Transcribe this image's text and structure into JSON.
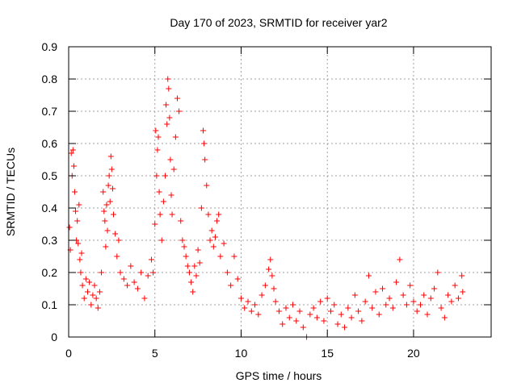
{
  "chart_data": {
    "type": "scatter",
    "title": "Day 170 of 2023, SRMTID for receiver yar2",
    "xlabel": "GPS time / hours",
    "ylabel": "SRMTID / TECUs",
    "xlim": [
      0,
      24.5
    ],
    "ylim": [
      0,
      0.9
    ],
    "xticks": [
      0,
      5,
      10,
      15,
      20
    ],
    "yticks": [
      0,
      0.1,
      0.2,
      0.3,
      0.4,
      0.5,
      0.6,
      0.7,
      0.8,
      0.9
    ],
    "xtick_labels": [
      "0",
      "5",
      "10",
      "15",
      "20"
    ],
    "ytick_labels": [
      "0",
      "0.1",
      "0.2",
      "0.3",
      "0.4",
      "0.5",
      "0.6",
      "0.7",
      "0.8",
      "0.9"
    ],
    "grid": true,
    "marker": "+",
    "series": [
      {
        "name": "yar2",
        "color": "#ff0000",
        "points": [
          [
            0.05,
            0.34
          ],
          [
            0.1,
            0.27
          ],
          [
            0.15,
            0.57
          ],
          [
            0.2,
            0.5
          ],
          [
            0.25,
            0.58
          ],
          [
            0.3,
            0.53
          ],
          [
            0.35,
            0.45
          ],
          [
            0.4,
            0.39
          ],
          [
            0.45,
            0.3
          ],
          [
            0.5,
            0.36
          ],
          [
            0.55,
            0.29
          ],
          [
            0.6,
            0.41
          ],
          [
            0.65,
            0.24
          ],
          [
            0.7,
            0.2
          ],
          [
            0.75,
            0.26
          ],
          [
            0.8,
            0.16
          ],
          [
            0.9,
            0.12
          ],
          [
            1.0,
            0.18
          ],
          [
            1.1,
            0.14
          ],
          [
            1.2,
            0.17
          ],
          [
            1.3,
            0.1
          ],
          [
            1.4,
            0.13
          ],
          [
            1.5,
            0.16
          ],
          [
            1.6,
            0.12
          ],
          [
            1.7,
            0.09
          ],
          [
            1.8,
            0.14
          ],
          [
            1.9,
            0.2
          ],
          [
            2.0,
            0.45
          ],
          [
            2.05,
            0.39
          ],
          [
            2.1,
            0.36
          ],
          [
            2.15,
            0.28
          ],
          [
            2.2,
            0.41
          ],
          [
            2.25,
            0.33
          ],
          [
            2.3,
            0.47
          ],
          [
            2.35,
            0.5
          ],
          [
            2.4,
            0.42
          ],
          [
            2.45,
            0.56
          ],
          [
            2.5,
            0.52
          ],
          [
            2.55,
            0.46
          ],
          [
            2.6,
            0.38
          ],
          [
            2.7,
            0.32
          ],
          [
            2.8,
            0.25
          ],
          [
            2.9,
            0.3
          ],
          [
            3.0,
            0.2
          ],
          [
            3.2,
            0.18
          ],
          [
            3.4,
            0.16
          ],
          [
            3.6,
            0.22
          ],
          [
            3.8,
            0.17
          ],
          [
            4.0,
            0.15
          ],
          [
            4.2,
            0.2
          ],
          [
            4.4,
            0.12
          ],
          [
            4.6,
            0.19
          ],
          [
            4.8,
            0.24
          ],
          [
            4.9,
            0.2
          ],
          [
            5.0,
            0.35
          ],
          [
            5.05,
            0.64
          ],
          [
            5.1,
            0.5
          ],
          [
            5.15,
            0.58
          ],
          [
            5.2,
            0.62
          ],
          [
            5.25,
            0.45
          ],
          [
            5.3,
            0.38
          ],
          [
            5.4,
            0.3
          ],
          [
            5.5,
            0.42
          ],
          [
            5.6,
            0.5
          ],
          [
            5.65,
            0.72
          ],
          [
            5.7,
            0.66
          ],
          [
            5.75,
            0.8
          ],
          [
            5.8,
            0.77
          ],
          [
            5.85,
            0.68
          ],
          [
            5.9,
            0.55
          ],
          [
            5.95,
            0.44
          ],
          [
            6.0,
            0.38
          ],
          [
            6.1,
            0.52
          ],
          [
            6.2,
            0.62
          ],
          [
            6.3,
            0.74
          ],
          [
            6.4,
            0.7
          ],
          [
            6.5,
            0.36
          ],
          [
            6.6,
            0.3
          ],
          [
            6.7,
            0.28
          ],
          [
            6.8,
            0.25
          ],
          [
            6.9,
            0.22
          ],
          [
            7.0,
            0.2
          ],
          [
            7.1,
            0.17
          ],
          [
            7.2,
            0.14
          ],
          [
            7.3,
            0.22
          ],
          [
            7.4,
            0.19
          ],
          [
            7.5,
            0.27
          ],
          [
            7.6,
            0.23
          ],
          [
            7.7,
            0.4
          ],
          [
            7.8,
            0.64
          ],
          [
            7.85,
            0.6
          ],
          [
            7.9,
            0.55
          ],
          [
            8.0,
            0.47
          ],
          [
            8.1,
            0.38
          ],
          [
            8.2,
            0.3
          ],
          [
            8.3,
            0.33
          ],
          [
            8.4,
            0.28
          ],
          [
            8.5,
            0.31
          ],
          [
            8.6,
            0.36
          ],
          [
            8.7,
            0.38
          ],
          [
            8.8,
            0.25
          ],
          [
            9.0,
            0.29
          ],
          [
            9.2,
            0.2
          ],
          [
            9.4,
            0.16
          ],
          [
            9.6,
            0.25
          ],
          [
            9.8,
            0.18
          ],
          [
            10.0,
            0.12
          ],
          [
            10.2,
            0.09
          ],
          [
            10.4,
            0.11
          ],
          [
            10.6,
            0.08
          ],
          [
            10.8,
            0.1
          ],
          [
            11.0,
            0.07
          ],
          [
            11.2,
            0.13
          ],
          [
            11.4,
            0.16
          ],
          [
            11.6,
            0.21
          ],
          [
            11.7,
            0.24
          ],
          [
            11.8,
            0.19
          ],
          [
            11.9,
            0.15
          ],
          [
            12.0,
            0.11
          ],
          [
            12.2,
            0.08
          ],
          [
            12.4,
            0.04
          ],
          [
            12.6,
            0.09
          ],
          [
            12.8,
            0.06
          ],
          [
            13.0,
            0.1
          ],
          [
            13.2,
            0.05
          ],
          [
            13.4,
            0.08
          ],
          [
            13.6,
            0.03
          ],
          [
            13.8,
            0.0
          ],
          [
            14.0,
            0.07
          ],
          [
            14.2,
            0.09
          ],
          [
            14.4,
            0.06
          ],
          [
            14.6,
            0.11
          ],
          [
            14.8,
            0.05
          ],
          [
            15.0,
            0.12
          ],
          [
            15.2,
            0.08
          ],
          [
            15.4,
            0.1
          ],
          [
            15.6,
            0.04
          ],
          [
            15.8,
            0.07
          ],
          [
            16.0,
            0.03
          ],
          [
            16.2,
            0.09
          ],
          [
            16.4,
            0.06
          ],
          [
            16.6,
            0.13
          ],
          [
            16.8,
            0.08
          ],
          [
            17.0,
            0.05
          ],
          [
            17.2,
            0.11
          ],
          [
            17.4,
            0.19
          ],
          [
            17.6,
            0.09
          ],
          [
            17.8,
            0.14
          ],
          [
            18.0,
            0.07
          ],
          [
            18.2,
            0.15
          ],
          [
            18.4,
            0.1
          ],
          [
            18.6,
            0.12
          ],
          [
            18.8,
            0.09
          ],
          [
            19.0,
            0.17
          ],
          [
            19.2,
            0.24
          ],
          [
            19.4,
            0.13
          ],
          [
            19.6,
            0.1
          ],
          [
            19.8,
            0.16
          ],
          [
            20.0,
            0.11
          ],
          [
            20.2,
            0.08
          ],
          [
            20.4,
            0.1
          ],
          [
            20.6,
            0.13
          ],
          [
            20.8,
            0.07
          ],
          [
            21.0,
            0.12
          ],
          [
            21.2,
            0.15
          ],
          [
            21.4,
            0.2
          ],
          [
            21.6,
            0.09
          ],
          [
            21.8,
            0.06
          ],
          [
            22.0,
            0.13
          ],
          [
            22.2,
            0.11
          ],
          [
            22.4,
            0.16
          ],
          [
            22.6,
            0.12
          ],
          [
            22.8,
            0.19
          ],
          [
            22.85,
            0.14
          ]
        ]
      }
    ]
  }
}
